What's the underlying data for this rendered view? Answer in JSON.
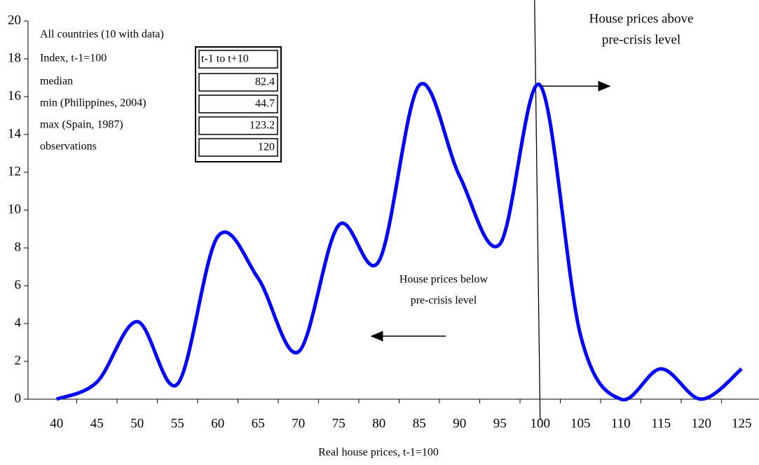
{
  "chart_data": {
    "type": "line",
    "x_label": "Real house prices, t-1=100",
    "categories": [
      40,
      45,
      50,
      55,
      60,
      65,
      70,
      75,
      80,
      85,
      90,
      95,
      100,
      105,
      110,
      115,
      120,
      125
    ],
    "values": [
      0,
      0.9,
      4.1,
      0.8,
      8.6,
      6.4,
      2.5,
      9.2,
      7.3,
      16.6,
      11.8,
      8.2,
      16.6,
      3.4,
      0,
      1.6,
      0,
      1.6
    ],
    "color": "#0000ff",
    "ylim": [
      0,
      20
    ],
    "yticks": [
      0,
      2,
      4,
      6,
      8,
      10,
      12,
      14,
      16,
      18,
      20
    ],
    "reference_category": 100,
    "annotations": [
      {
        "lines": [
          "House prices above",
          "pre-crisis level"
        ]
      },
      {
        "lines": [
          "House prices below",
          "pre-crisis level"
        ]
      }
    ],
    "inset": {
      "title": "All countries (10 with data)",
      "header": [
        "Index, t-1=100",
        "t-1 to t+10"
      ],
      "rows": [
        [
          "median",
          82.4
        ],
        [
          "min (Philippines, 2004)",
          44.7
        ],
        [
          "max (Spain, 1987)",
          123.2
        ],
        [
          "observations",
          120
        ]
      ]
    }
  }
}
